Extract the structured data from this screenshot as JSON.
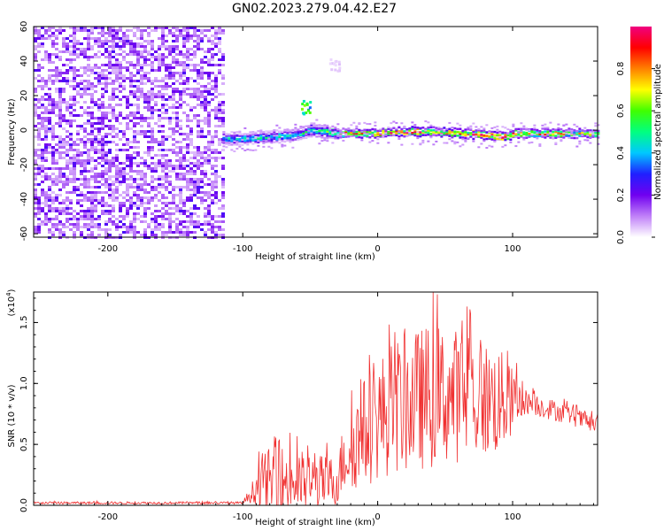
{
  "chart_data": [
    {
      "type": "heatmap",
      "title": "GN02.2023.279.04.42.E27",
      "xlabel": "Height of straight line (km)",
      "ylabel": "Frequency (Hz)",
      "xlim": [
        -255,
        163
      ],
      "ylim": [
        -62,
        60
      ],
      "xticks": [
        -200,
        -100,
        0,
        100
      ],
      "yticks": [
        -60,
        -40,
        -20,
        0,
        20,
        40,
        60
      ],
      "colorbar": {
        "label": "Normalized spectral amplitude",
        "range": [
          0,
          1
        ],
        "ticks": [
          "0.0",
          "0.2",
          "0.4",
          "0.6",
          "0.8"
        ],
        "colors": [
          "#ffffff",
          "#c080f8",
          "#7000f0",
          "#2020ff",
          "#00c8ff",
          "#00ff80",
          "#40ff00",
          "#ffff00",
          "#ff8000",
          "#ff0000",
          "#f00080"
        ]
      },
      "noise_region_x": [
        -255,
        -115
      ],
      "signal_ridge": [
        {
          "x": -115,
          "f": -5,
          "amp": 0.45
        },
        {
          "x": -100,
          "f": -5,
          "amp": 0.45
        },
        {
          "x": -80,
          "f": -4,
          "amp": 0.45
        },
        {
          "x": -60,
          "f": -3,
          "amp": 0.45
        },
        {
          "x": -50,
          "f": 0,
          "amp": 0.5
        },
        {
          "x": -30,
          "f": -2,
          "amp": 0.6
        },
        {
          "x": -20,
          "f": -2,
          "amp": 0.85
        },
        {
          "x": 0,
          "f": -2,
          "amp": 0.9
        },
        {
          "x": 20,
          "f": -1,
          "amp": 0.95
        },
        {
          "x": 40,
          "f": -1,
          "amp": 0.9
        },
        {
          "x": 60,
          "f": -2,
          "amp": 0.9
        },
        {
          "x": 80,
          "f": -3,
          "amp": 0.9
        },
        {
          "x": 95,
          "f": -4,
          "amp": 0.95
        },
        {
          "x": 100,
          "f": -2,
          "amp": 0.8
        },
        {
          "x": 130,
          "f": -2,
          "amp": 0.75
        },
        {
          "x": 163,
          "f": -2,
          "amp": 0.7
        }
      ],
      "side_blobs": [
        {
          "x": -53,
          "f": 14,
          "amp": 0.6
        },
        {
          "x": -32,
          "f": 38,
          "amp": 0.05
        }
      ]
    },
    {
      "type": "line",
      "xlabel": "Height of straight line (km)",
      "ylabel": "SNR (10 * v/v)",
      "multiplier_base": "(x10",
      "multiplier_exp": "4",
      "multiplier_close": ")",
      "xlim": [
        -255,
        163
      ],
      "ylim": [
        0,
        1.75
      ],
      "xticks": [
        -200,
        -100,
        0,
        100
      ],
      "yticks": [
        "0.0",
        "0.5",
        "1.0",
        "1.5"
      ],
      "ytick_values": [
        0,
        0.5,
        1.0,
        1.5
      ],
      "line_color": "#f03030",
      "envelope": [
        {
          "x": -255,
          "base": 0.02,
          "amp": 0.01
        },
        {
          "x": -100,
          "base": 0.02,
          "amp": 0.01
        },
        {
          "x": -92,
          "base": 0.12,
          "amp": 0.1
        },
        {
          "x": -85,
          "base": 0.2,
          "amp": 0.25
        },
        {
          "x": -70,
          "base": 0.2,
          "amp": 0.3
        },
        {
          "x": -50,
          "base": 0.18,
          "amp": 0.25
        },
        {
          "x": -30,
          "base": 0.2,
          "amp": 0.2
        },
        {
          "x": -25,
          "base": 0.4,
          "amp": 0.3
        },
        {
          "x": -10,
          "base": 0.6,
          "amp": 0.45
        },
        {
          "x": 10,
          "base": 0.8,
          "amp": 0.55
        },
        {
          "x": 40,
          "base": 0.9,
          "amp": 0.6
        },
        {
          "x": 60,
          "base": 0.9,
          "amp": 0.55
        },
        {
          "x": 90,
          "base": 0.85,
          "amp": 0.45
        },
        {
          "x": 110,
          "base": 0.85,
          "amp": 0.1
        },
        {
          "x": 140,
          "base": 0.75,
          "amp": 0.08
        },
        {
          "x": 163,
          "base": 0.65,
          "amp": 0.07
        }
      ]
    }
  ]
}
